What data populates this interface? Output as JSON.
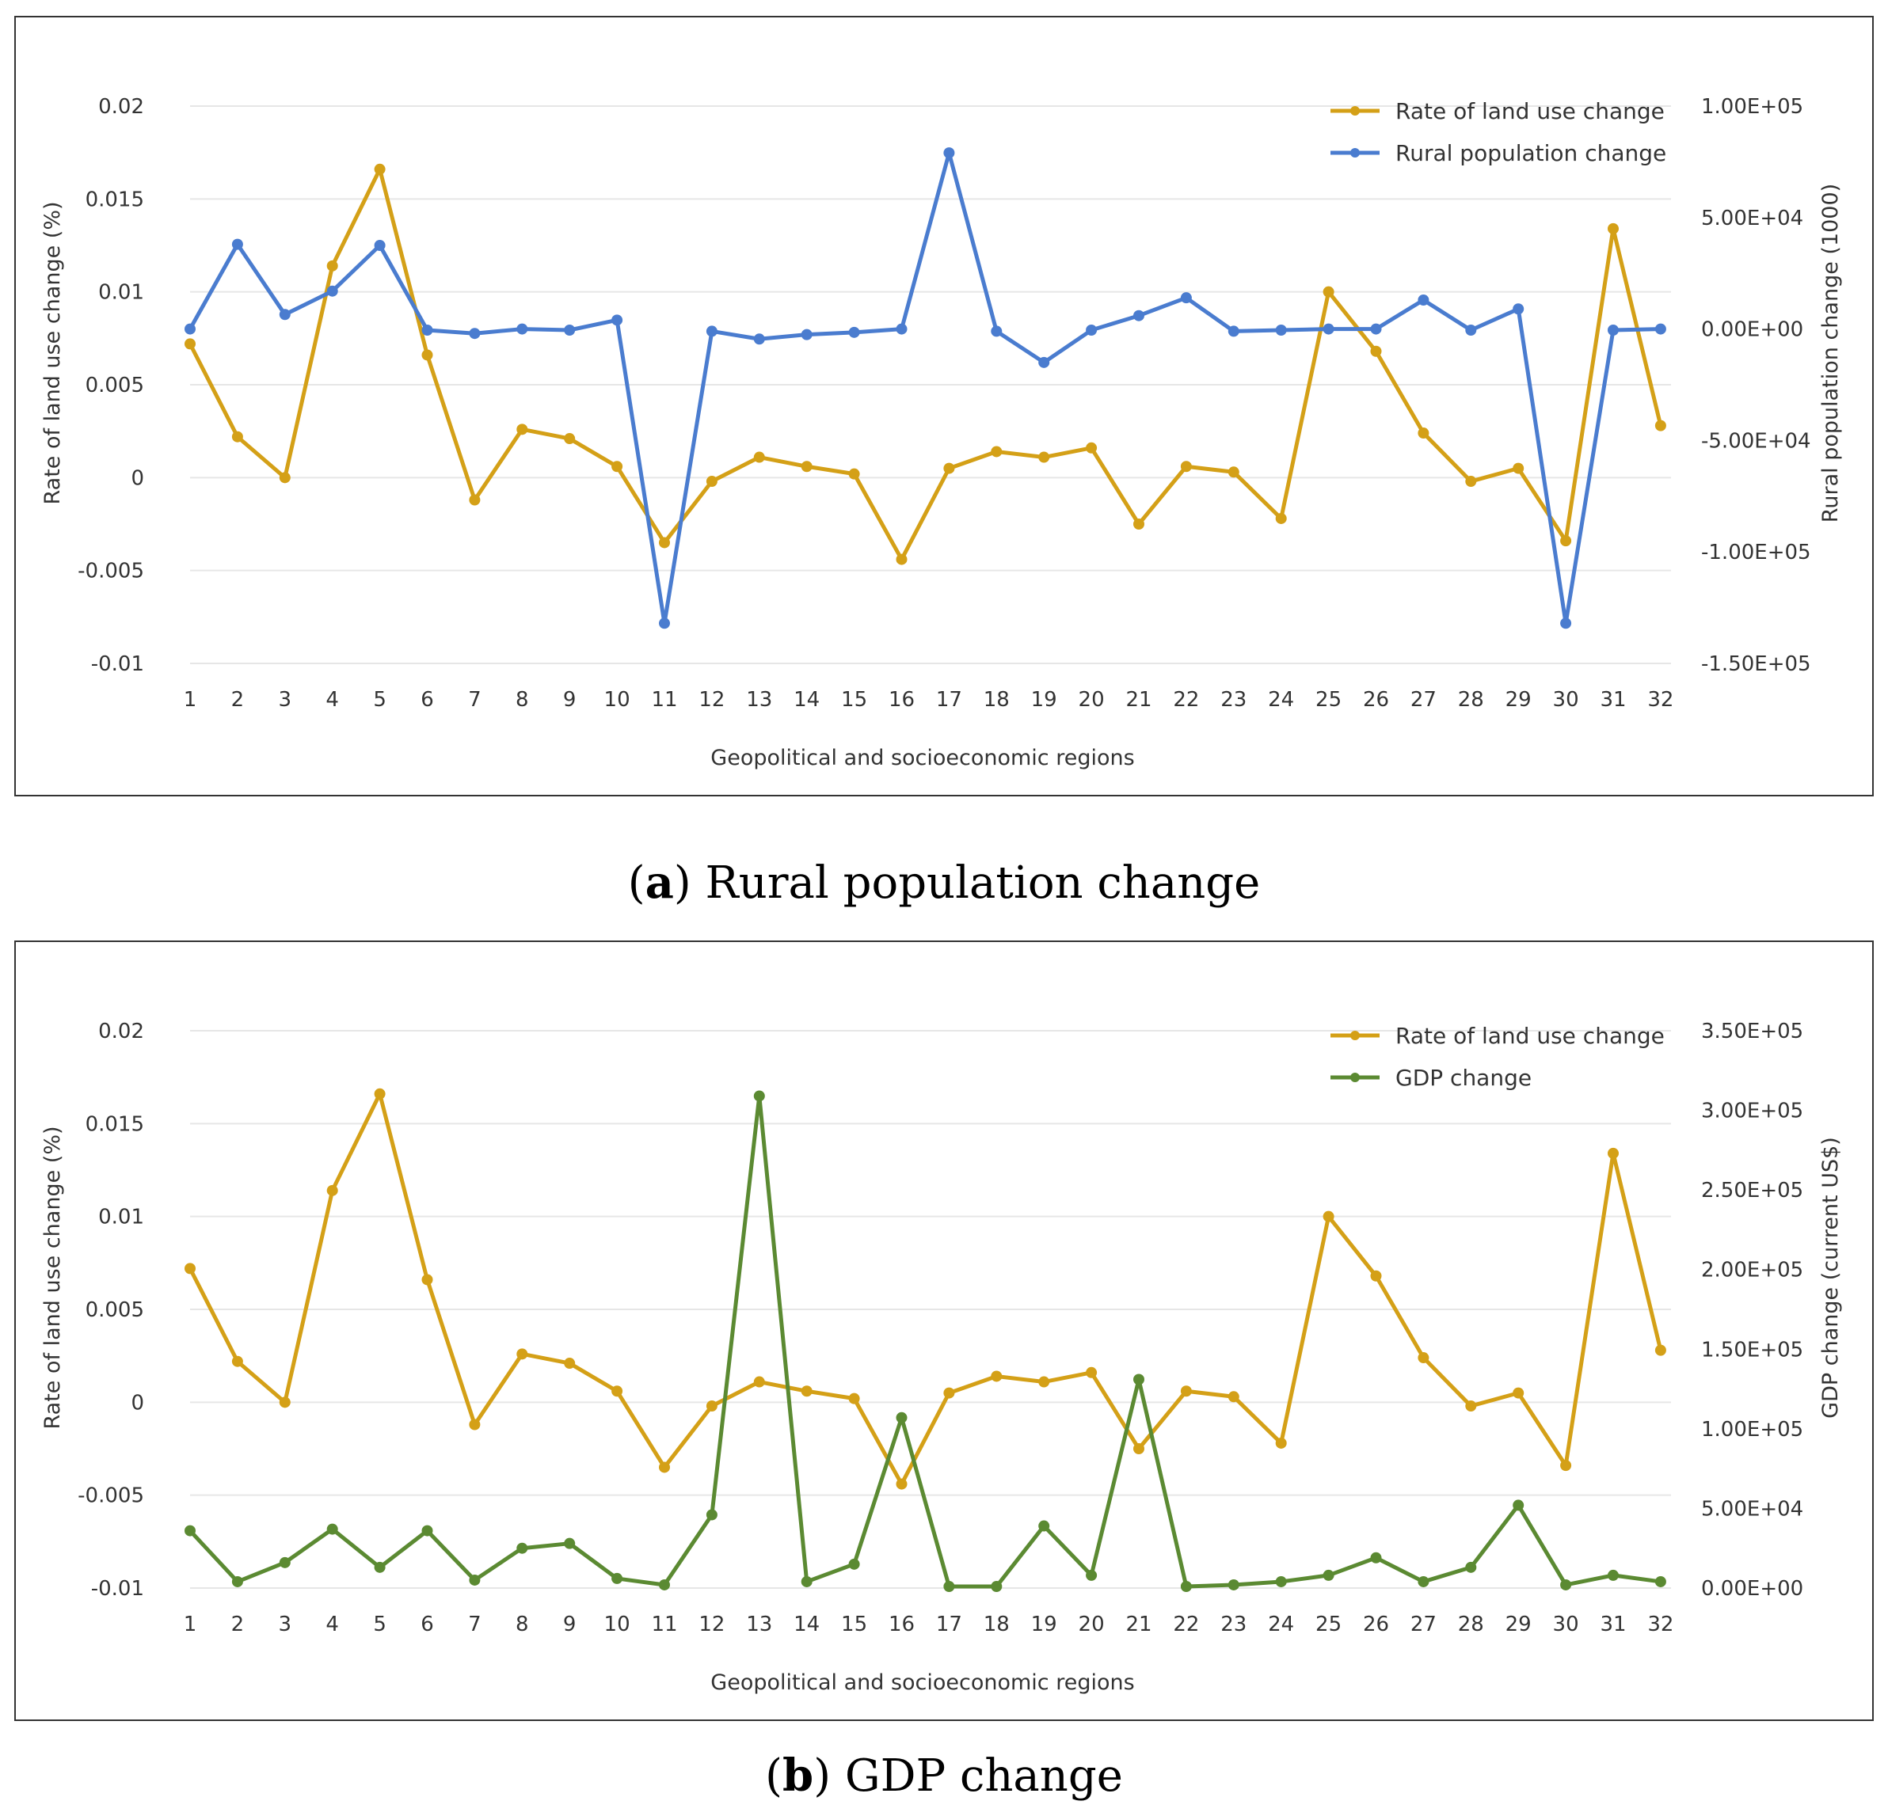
{
  "chart_data": [
    {
      "type": "line",
      "id": "a",
      "caption_letter": "a",
      "caption_text": "Rural population change",
      "categories": [
        "1",
        "2",
        "3",
        "4",
        "5",
        "6",
        "7",
        "8",
        "9",
        "10",
        "11",
        "12",
        "13",
        "14",
        "15",
        "16",
        "17",
        "18",
        "19",
        "20",
        "21",
        "22",
        "23",
        "24",
        "25",
        "26",
        "27",
        "28",
        "29",
        "30",
        "31",
        "32"
      ],
      "xlabel": "Geopolitical and socioeconomic regions",
      "ylabel_left": "Rate of land use change (%)",
      "ylabel_right": "Rural population change (1000)",
      "ylim_left": [
        -0.01,
        0.02
      ],
      "ylim_right": [
        -150000,
        100000
      ],
      "yticks_left": [
        "0.02",
        "0.015",
        "0.01",
        "0.005",
        "0",
        "-0.005",
        "-0.01"
      ],
      "yticks_right": [
        "1.00E+05",
        "5.00E+04",
        "0.00E+00",
        "-5.00E+04",
        "-1.00E+05",
        "-1.50E+05"
      ],
      "grid": true,
      "legend_position": "top-right",
      "series": [
        {
          "name": "Rate of land use change",
          "axis": "left",
          "color": "#D4A017",
          "values": [
            0.0072,
            0.0022,
            0.0,
            0.0114,
            0.0166,
            0.0066,
            -0.0012,
            0.0026,
            0.0021,
            0.0006,
            -0.0035,
            -0.0002,
            0.0011,
            0.0006,
            0.0002,
            -0.0044,
            0.0005,
            0.0014,
            0.0011,
            0.0016,
            -0.0025,
            0.0006,
            0.0003,
            -0.0022,
            0.01,
            0.0068,
            0.0024,
            -0.0002,
            0.0005,
            -0.0034,
            0.0134,
            0.0028
          ]
        },
        {
          "name": "Rural population change",
          "axis": "right",
          "color": "#4A7CCF",
          "values": [
            0,
            38000,
            6500,
            17000,
            37500,
            -500,
            -2000,
            0,
            -500,
            4000,
            -132000,
            -1000,
            -4500,
            -2500,
            -1500,
            0,
            79000,
            -1000,
            -15000,
            -500,
            6000,
            14000,
            -1000,
            -500,
            0,
            0,
            13000,
            -500,
            9000,
            -132000,
            -500,
            0
          ]
        }
      ]
    },
    {
      "type": "line",
      "id": "b",
      "caption_letter": "b",
      "caption_text": "GDP change",
      "categories": [
        "1",
        "2",
        "3",
        "4",
        "5",
        "6",
        "7",
        "8",
        "9",
        "10",
        "11",
        "12",
        "13",
        "14",
        "15",
        "16",
        "17",
        "18",
        "19",
        "20",
        "21",
        "22",
        "23",
        "24",
        "25",
        "26",
        "27",
        "28",
        "29",
        "30",
        "31",
        "32"
      ],
      "xlabel": "Geopolitical and socioeconomic regions",
      "ylabel_left": "Rate of land use change (%)",
      "ylabel_right": "GDP change (current US$)",
      "ylim_left": [
        -0.01,
        0.02
      ],
      "ylim_right": [
        0,
        350000
      ],
      "yticks_left": [
        "0.02",
        "0.015",
        "0.01",
        "0.005",
        "0",
        "-0.005",
        "-0.01"
      ],
      "yticks_right": [
        "3.50E+05",
        "3.00E+05",
        "2.50E+05",
        "2.00E+05",
        "1.50E+05",
        "1.00E+05",
        "5.00E+04",
        "0.00E+00"
      ],
      "grid": true,
      "legend_position": "top-right",
      "series": [
        {
          "name": "Rate of land use change",
          "axis": "left",
          "color": "#D4A017",
          "values": [
            0.0072,
            0.0022,
            0.0,
            0.0114,
            0.0166,
            0.0066,
            -0.0012,
            0.0026,
            0.0021,
            0.0006,
            -0.0035,
            -0.0002,
            0.0011,
            0.0006,
            0.0002,
            -0.0044,
            0.0005,
            0.0014,
            0.0011,
            0.0016,
            -0.0025,
            0.0006,
            0.0003,
            -0.0022,
            0.01,
            0.0068,
            0.0024,
            -0.0002,
            0.0005,
            -0.0034,
            0.0134,
            0.0028
          ]
        },
        {
          "name": "GDP change",
          "axis": "right",
          "color": "#5B8A32",
          "values": [
            36000,
            4000,
            16000,
            37000,
            13000,
            36000,
            5000,
            25000,
            28000,
            6000,
            2000,
            46000,
            309000,
            4000,
            15000,
            107000,
            1000,
            1000,
            39000,
            8000,
            131000,
            1000,
            2000,
            4000,
            8000,
            19000,
            4000,
            13000,
            52000,
            2000,
            8000,
            4000
          ]
        }
      ]
    }
  ]
}
